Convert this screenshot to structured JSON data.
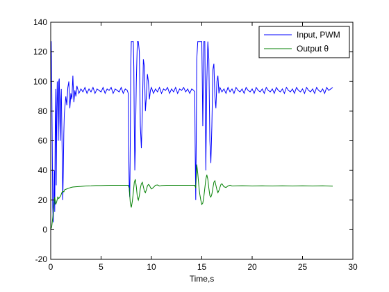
{
  "chart_data": {
    "type": "line",
    "title": "",
    "xlabel": "Time,s",
    "ylabel": "",
    "xlim": [
      0,
      30
    ],
    "ylim": [
      -20,
      140
    ],
    "xticks": [
      0,
      5,
      10,
      15,
      20,
      25,
      30
    ],
    "yticks": [
      -20,
      0,
      20,
      40,
      60,
      80,
      100,
      120,
      140
    ],
    "grid": false,
    "legend_position": "top-right",
    "series": [
      {
        "name": "Input, PWM",
        "color": "#0000ff",
        "points": [
          [
            0,
            127
          ],
          [
            0.05,
            127
          ],
          [
            0.1,
            100
          ],
          [
            0.15,
            60
          ],
          [
            0.2,
            15
          ],
          [
            0.25,
            5
          ],
          [
            0.3,
            20
          ],
          [
            0.35,
            40
          ],
          [
            0.4,
            12
          ],
          [
            0.45,
            70
          ],
          [
            0.5,
            95
          ],
          [
            0.55,
            30
          ],
          [
            0.6,
            80
          ],
          [
            0.65,
            100
          ],
          [
            0.7,
            85
          ],
          [
            0.75,
            60
          ],
          [
            0.8,
            100
          ],
          [
            0.85,
            102
          ],
          [
            0.9,
            75
          ],
          [
            0.95,
            60
          ],
          [
            1.0,
            88
          ],
          [
            1.05,
            95
          ],
          [
            1.1,
            70
          ],
          [
            1.15,
            45
          ],
          [
            1.2,
            20
          ],
          [
            1.25,
            40
          ],
          [
            1.3,
            65
          ],
          [
            1.35,
            78
          ],
          [
            1.4,
            82
          ],
          [
            1.5,
            90
          ],
          [
            1.6,
            84
          ],
          [
            1.7,
            96
          ],
          [
            1.8,
            100
          ],
          [
            1.9,
            82
          ],
          [
            2.0,
            92
          ],
          [
            2.1,
            88
          ],
          [
            2.2,
            104
          ],
          [
            2.3,
            86
          ],
          [
            2.4,
            94
          ],
          [
            2.5,
            90
          ],
          [
            2.6,
            97
          ],
          [
            2.8,
            92
          ],
          [
            3.0,
            95
          ],
          [
            3.2,
            93
          ],
          [
            3.4,
            96
          ],
          [
            3.6,
            92
          ],
          [
            3.8,
            95
          ],
          [
            4.0,
            93
          ],
          [
            4.2,
            96
          ],
          [
            4.4,
            92
          ],
          [
            4.6,
            95
          ],
          [
            4.8,
            94
          ],
          [
            5.0,
            93
          ],
          [
            5.2,
            96
          ],
          [
            5.4,
            92
          ],
          [
            5.6,
            95
          ],
          [
            5.8,
            94
          ],
          [
            6.0,
            96
          ],
          [
            6.2,
            92
          ],
          [
            6.4,
            95
          ],
          [
            6.6,
            94
          ],
          [
            6.8,
            93
          ],
          [
            7.0,
            96
          ],
          [
            7.2,
            92
          ],
          [
            7.4,
            95
          ],
          [
            7.6,
            94
          ],
          [
            7.7,
            92
          ],
          [
            7.75,
            50
          ],
          [
            7.8,
            27
          ],
          [
            7.85,
            22
          ],
          [
            7.9,
            60
          ],
          [
            7.95,
            110
          ],
          [
            8.0,
            127
          ],
          [
            8.1,
            127
          ],
          [
            8.2,
            127
          ],
          [
            8.25,
            110
          ],
          [
            8.3,
            70
          ],
          [
            8.35,
            40
          ],
          [
            8.4,
            55
          ],
          [
            8.5,
            100
          ],
          [
            8.6,
            127
          ],
          [
            8.7,
            127
          ],
          [
            8.8,
            120
          ],
          [
            8.9,
            70
          ],
          [
            9.0,
            55
          ],
          [
            9.1,
            80
          ],
          [
            9.2,
            115
          ],
          [
            9.3,
            110
          ],
          [
            9.4,
            80
          ],
          [
            9.5,
            90
          ],
          [
            9.6,
            105
          ],
          [
            9.7,
            100
          ],
          [
            9.8,
            88
          ],
          [
            9.9,
            94
          ],
          [
            10.0,
            96
          ],
          [
            10.2,
            92
          ],
          [
            10.4,
            95
          ],
          [
            10.6,
            93
          ],
          [
            10.8,
            96
          ],
          [
            11.0,
            92
          ],
          [
            11.2,
            95
          ],
          [
            11.4,
            94
          ],
          [
            11.6,
            96
          ],
          [
            11.8,
            92
          ],
          [
            12.0,
            95
          ],
          [
            12.2,
            93
          ],
          [
            12.4,
            96
          ],
          [
            12.6,
            92
          ],
          [
            12.8,
            95
          ],
          [
            13.0,
            94
          ],
          [
            13.2,
            96
          ],
          [
            13.4,
            93
          ],
          [
            13.6,
            95
          ],
          [
            13.8,
            92
          ],
          [
            14.0,
            95
          ],
          [
            14.2,
            94
          ],
          [
            14.3,
            93
          ],
          [
            14.35,
            50
          ],
          [
            14.4,
            20
          ],
          [
            14.45,
            60
          ],
          [
            14.5,
            115
          ],
          [
            14.6,
            127
          ],
          [
            14.8,
            127
          ],
          [
            15.0,
            127
          ],
          [
            15.05,
            100
          ],
          [
            15.1,
            70
          ],
          [
            15.2,
            127
          ],
          [
            15.3,
            127
          ],
          [
            15.35,
            90
          ],
          [
            15.4,
            40
          ],
          [
            15.5,
            100
          ],
          [
            15.6,
            127
          ],
          [
            15.7,
            115
          ],
          [
            15.8,
            60
          ],
          [
            15.9,
            45
          ],
          [
            16.0,
            70
          ],
          [
            16.1,
            108
          ],
          [
            16.2,
            112
          ],
          [
            16.3,
            90
          ],
          [
            16.4,
            82
          ],
          [
            16.5,
            100
          ],
          [
            16.6,
            104
          ],
          [
            16.7,
            92
          ],
          [
            16.8,
            96
          ],
          [
            17.0,
            93
          ],
          [
            17.2,
            95
          ],
          [
            17.4,
            92
          ],
          [
            17.6,
            96
          ],
          [
            17.8,
            93
          ],
          [
            18.0,
            95
          ],
          [
            18.2,
            92
          ],
          [
            18.4,
            96
          ],
          [
            18.6,
            94
          ],
          [
            18.8,
            93
          ],
          [
            19.0,
            95
          ],
          [
            19.2,
            92
          ],
          [
            19.4,
            96
          ],
          [
            19.6,
            94
          ],
          [
            19.8,
            93
          ],
          [
            20.0,
            95
          ],
          [
            20.2,
            92
          ],
          [
            20.4,
            96
          ],
          [
            20.6,
            94
          ],
          [
            20.8,
            93
          ],
          [
            21.0,
            95
          ],
          [
            21.2,
            92
          ],
          [
            21.4,
            96
          ],
          [
            21.6,
            94
          ],
          [
            21.8,
            93
          ],
          [
            22.0,
            95
          ],
          [
            22.2,
            92
          ],
          [
            22.4,
            96
          ],
          [
            22.6,
            94
          ],
          [
            22.8,
            93
          ],
          [
            23.0,
            95
          ],
          [
            23.2,
            92
          ],
          [
            23.4,
            96
          ],
          [
            23.6,
            94
          ],
          [
            23.8,
            93
          ],
          [
            24.0,
            95
          ],
          [
            24.2,
            92
          ],
          [
            24.4,
            96
          ],
          [
            24.6,
            94
          ],
          [
            24.8,
            93
          ],
          [
            25.0,
            95
          ],
          [
            25.2,
            92
          ],
          [
            25.4,
            96
          ],
          [
            25.6,
            94
          ],
          [
            25.8,
            93
          ],
          [
            26.0,
            95
          ],
          [
            26.2,
            92
          ],
          [
            26.4,
            96
          ],
          [
            26.6,
            94
          ],
          [
            26.8,
            93
          ],
          [
            27.0,
            95
          ],
          [
            27.2,
            92
          ],
          [
            27.4,
            96
          ],
          [
            27.6,
            94
          ],
          [
            27.8,
            95
          ],
          [
            28.0,
            96
          ]
        ]
      },
      {
        "name": "Output θ",
        "color": "#007f00",
        "points": [
          [
            0,
            0
          ],
          [
            0.1,
            2
          ],
          [
            0.2,
            8
          ],
          [
            0.3,
            15
          ],
          [
            0.4,
            22
          ],
          [
            0.5,
            17
          ],
          [
            0.6,
            19
          ],
          [
            0.7,
            22
          ],
          [
            0.8,
            21
          ],
          [
            0.9,
            22
          ],
          [
            1.0,
            23
          ],
          [
            1.1,
            25
          ],
          [
            1.2,
            26
          ],
          [
            1.3,
            25.5
          ],
          [
            1.4,
            27
          ],
          [
            1.6,
            27.5
          ],
          [
            1.8,
            28
          ],
          [
            2.0,
            28.5
          ],
          [
            2.2,
            28.8
          ],
          [
            2.5,
            29
          ],
          [
            3.0,
            29.2
          ],
          [
            3.5,
            29.5
          ],
          [
            4.0,
            29.6
          ],
          [
            4.5,
            29.8
          ],
          [
            5.0,
            29.8
          ],
          [
            5.5,
            29.9
          ],
          [
            6.0,
            30
          ],
          [
            6.5,
            30
          ],
          [
            7.0,
            30
          ],
          [
            7.5,
            30
          ],
          [
            7.7,
            30
          ],
          [
            7.8,
            28
          ],
          [
            7.9,
            18
          ],
          [
            8.0,
            15
          ],
          [
            8.1,
            19
          ],
          [
            8.2,
            25
          ],
          [
            8.3,
            32
          ],
          [
            8.4,
            34
          ],
          [
            8.5,
            29
          ],
          [
            8.6,
            22
          ],
          [
            8.7,
            20
          ],
          [
            8.8,
            23
          ],
          [
            8.9,
            28
          ],
          [
            9.0,
            31
          ],
          [
            9.1,
            32
          ],
          [
            9.2,
            29
          ],
          [
            9.3,
            26
          ],
          [
            9.4,
            25
          ],
          [
            9.5,
            27
          ],
          [
            9.6,
            29.5
          ],
          [
            9.7,
            30.5
          ],
          [
            9.8,
            30
          ],
          [
            9.9,
            28.5
          ],
          [
            10.0,
            27.5
          ],
          [
            10.2,
            28.5
          ],
          [
            10.4,
            30
          ],
          [
            10.6,
            30.2
          ],
          [
            10.8,
            29.5
          ],
          [
            11.0,
            29.8
          ],
          [
            11.5,
            30
          ],
          [
            12.0,
            30
          ],
          [
            12.5,
            30
          ],
          [
            13.0,
            30
          ],
          [
            13.5,
            30
          ],
          [
            14.0,
            30
          ],
          [
            14.3,
            30
          ],
          [
            14.4,
            28
          ],
          [
            14.5,
            44
          ],
          [
            14.6,
            38
          ],
          [
            14.7,
            30
          ],
          [
            14.8,
            24
          ],
          [
            14.9,
            20
          ],
          [
            15.0,
            17
          ],
          [
            15.1,
            18
          ],
          [
            15.2,
            22
          ],
          [
            15.3,
            28
          ],
          [
            15.4,
            34
          ],
          [
            15.5,
            37
          ],
          [
            15.6,
            34
          ],
          [
            15.7,
            28
          ],
          [
            15.8,
            23
          ],
          [
            15.9,
            22
          ],
          [
            16.0,
            24
          ],
          [
            16.1,
            28
          ],
          [
            16.2,
            32
          ],
          [
            16.3,
            33
          ],
          [
            16.4,
            30
          ],
          [
            16.5,
            27
          ],
          [
            16.6,
            25
          ],
          [
            16.7,
            26.5
          ],
          [
            16.8,
            28.5
          ],
          [
            16.9,
            30.5
          ],
          [
            17.0,
            31
          ],
          [
            17.2,
            29
          ],
          [
            17.4,
            28.5
          ],
          [
            17.6,
            29.5
          ],
          [
            17.8,
            30
          ],
          [
            18.0,
            29.5
          ],
          [
            18.5,
            29.6
          ],
          [
            19.0,
            29.7
          ],
          [
            19.5,
            29.6
          ],
          [
            20.0,
            29.5
          ],
          [
            21.0,
            29.6
          ],
          [
            22.0,
            29.5
          ],
          [
            23.0,
            29.6
          ],
          [
            24.0,
            29.5
          ],
          [
            25.0,
            29.6
          ],
          [
            26.0,
            29.5
          ],
          [
            27.0,
            29.6
          ],
          [
            28.0,
            29.4
          ]
        ]
      }
    ]
  }
}
